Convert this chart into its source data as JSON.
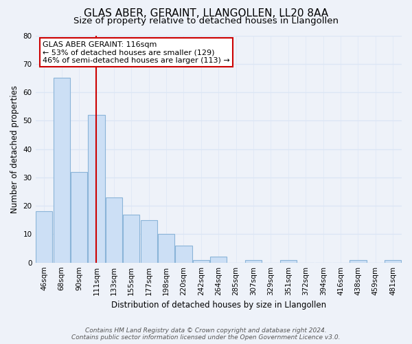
{
  "title": "GLAS ABER, GERAINT, LLANGOLLEN, LL20 8AA",
  "subtitle": "Size of property relative to detached houses in Llangollen",
  "xlabel": "Distribution of detached houses by size in Llangollen",
  "ylabel": "Number of detached properties",
  "bar_labels": [
    "46sqm",
    "68sqm",
    "90sqm",
    "111sqm",
    "133sqm",
    "155sqm",
    "177sqm",
    "198sqm",
    "220sqm",
    "242sqm",
    "264sqm",
    "285sqm",
    "307sqm",
    "329sqm",
    "351sqm",
    "372sqm",
    "394sqm",
    "416sqm",
    "438sqm",
    "459sqm",
    "481sqm"
  ],
  "bar_values": [
    18,
    65,
    32,
    52,
    23,
    17,
    15,
    10,
    6,
    1,
    2,
    0,
    1,
    0,
    1,
    0,
    0,
    0,
    1,
    0,
    1
  ],
  "bar_color": "#ccdff5",
  "bar_edge_color": "#8ab4d8",
  "vline_x": 3,
  "vline_color": "#cc0000",
  "annotation_title": "GLAS ABER GERAINT: 116sqm",
  "annotation_line1": "← 53% of detached houses are smaller (129)",
  "annotation_line2": "46% of semi-detached houses are larger (113) →",
  "annotation_box_color": "#ffffff",
  "annotation_box_edge": "#cc0000",
  "ylim": [
    0,
    80
  ],
  "yticks": [
    0,
    10,
    20,
    30,
    40,
    50,
    60,
    70,
    80
  ],
  "footer_line1": "Contains HM Land Registry data © Crown copyright and database right 2024.",
  "footer_line2": "Contains public sector information licensed under the Open Government Licence v3.0.",
  "bg_color": "#eef2f9",
  "grid_color": "#dce6f5",
  "title_fontsize": 11,
  "subtitle_fontsize": 9.5,
  "axis_label_fontsize": 8.5,
  "tick_fontsize": 7.5,
  "footer_fontsize": 6.5
}
